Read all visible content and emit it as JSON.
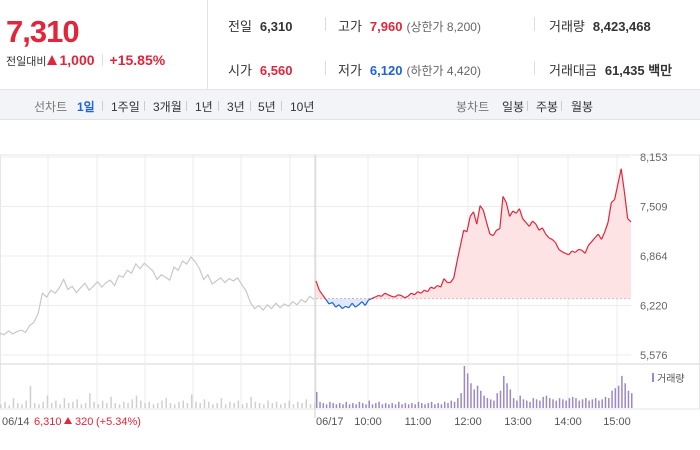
{
  "quote": {
    "price": "7,310",
    "change_label": "전일대비",
    "change_amount": "1,000",
    "change_pct": "+15.85%",
    "prev_close_label": "전일",
    "prev_close": "6,310",
    "open_label": "시가",
    "open": "6,560",
    "high_label": "고가",
    "high": "7,960",
    "upper_limit": "(상한가 8,200)",
    "low_label": "저가",
    "low": "6,120",
    "lower_limit": "(하한가 4,420)",
    "volume_label": "거래량",
    "volume": "8,423,468",
    "amount_label": "거래대금",
    "amount": "61,435 백만"
  },
  "tabs": {
    "line_label": "선차트",
    "line_items": [
      "1일",
      "1주일",
      "3개월",
      "1년",
      "3년",
      "5년",
      "10년"
    ],
    "active_line": 0,
    "candle_label": "봉차트",
    "candle_items": [
      "일봉",
      "주봉",
      "월봉"
    ]
  },
  "colors": {
    "up": "#e1253a",
    "down": "#1f63d6",
    "prev_day_line": "#c8c8c8",
    "area_fill": "#fde3e3",
    "volume_bar": "#9b88c4"
  },
  "chart_data": {
    "type": "line",
    "yticks": [
      "8,153",
      "7,509",
      "6,864",
      "6,220",
      "5,576"
    ],
    "ylim": [
      5576,
      8153
    ],
    "baseline": 6310,
    "xticks": [
      "06/17",
      "10:00",
      "11:00",
      "12:00",
      "13:00",
      "14:00",
      "15:00"
    ],
    "prev_day_caption": {
      "date": "06/14",
      "close": "6,310",
      "change": "320",
      "change_pct": "(+5.34%)"
    },
    "volume_legend": "거래량",
    "prev_day_series": [
      5860,
      5840,
      5890,
      5850,
      5880,
      5900,
      5870,
      5960,
      6000,
      6120,
      6380,
      6330,
      6420,
      6380,
      6450,
      6560,
      6430,
      6470,
      6390,
      6450,
      6510,
      6420,
      6470,
      6530,
      6460,
      6520,
      6550,
      6480,
      6610,
      6590,
      6680,
      6640,
      6760,
      6700,
      6770,
      6720,
      6670,
      6560,
      6620,
      6590,
      6550,
      6720,
      6680,
      6800,
      6760,
      6850,
      6790,
      6700,
      6560,
      6620,
      6500,
      6540,
      6580,
      6520,
      6570,
      6540,
      6580,
      6490,
      6410,
      6260,
      6180,
      6220,
      6160,
      6230,
      6180,
      6250,
      6190,
      6240,
      6210,
      6270,
      6230,
      6300,
      6260,
      6340,
      6300
    ],
    "intraday_series": [
      6540,
      6420,
      6360,
      6300,
      6240,
      6260,
      6200,
      6230,
      6180,
      6210,
      6190,
      6250,
      6200,
      6230,
      6270,
      6220,
      6290,
      6310,
      6330,
      6350,
      6340,
      6380,
      6360,
      6340,
      6330,
      6360,
      6350,
      6320,
      6340,
      6380,
      6360,
      6400,
      6380,
      6420,
      6400,
      6460,
      6440,
      6480,
      6460,
      6570,
      6520,
      6520,
      6580,
      6800,
      7000,
      7200,
      7180,
      7380,
      7440,
      7280,
      7520,
      7460,
      7300,
      7150,
      7130,
      7200,
      7220,
      7640,
      7560,
      7380,
      7450,
      7420,
      7480,
      7350,
      7300,
      7250,
      7320,
      7280,
      7200,
      7230,
      7150,
      7100,
      7080,
      7040,
      6950,
      6920,
      6900,
      6880,
      6930,
      6910,
      6950,
      6940,
      6900,
      7000,
      7050,
      7100,
      7150,
      7080,
      7180,
      7300,
      7560,
      7600,
      7800,
      8000,
      7700,
      7350,
      7310
    ],
    "prev_volume": [
      3,
      5,
      2,
      8,
      4,
      3,
      6,
      18,
      4,
      3,
      5,
      10,
      4,
      6,
      3,
      8,
      4,
      5,
      7,
      3,
      4,
      12,
      5,
      3,
      6,
      4,
      9,
      4,
      3,
      5,
      4,
      7,
      10,
      6,
      4,
      5,
      3,
      4,
      6,
      8,
      4,
      3,
      5,
      6,
      4,
      11,
      5,
      4,
      7,
      5,
      3,
      4,
      8,
      3,
      5,
      4,
      6,
      3,
      4,
      9,
      5,
      4,
      3,
      6,
      4,
      5,
      3,
      4,
      6,
      3,
      5,
      4,
      7,
      3,
      4
    ],
    "intraday_volume": [
      13,
      5,
      4,
      3,
      5,
      4,
      3,
      4,
      3,
      5,
      3,
      4,
      3,
      5,
      4,
      3,
      6,
      3,
      4,
      5,
      3,
      4,
      3,
      4,
      3,
      5,
      3,
      4,
      3,
      4,
      3,
      5,
      4,
      3,
      4,
      5,
      3,
      4,
      3,
      5,
      4,
      6,
      5,
      8,
      12,
      34,
      28,
      20,
      15,
      18,
      14,
      10,
      8,
      7,
      6,
      12,
      14,
      26,
      20,
      15,
      8,
      6,
      10,
      7,
      6,
      5,
      8,
      7,
      6,
      9,
      10,
      8,
      7,
      6,
      8,
      7,
      6,
      8,
      9,
      8,
      6,
      7,
      8,
      6,
      7,
      8,
      6,
      7,
      9,
      8,
      14,
      16,
      18,
      26,
      20,
      14,
      12
    ]
  }
}
